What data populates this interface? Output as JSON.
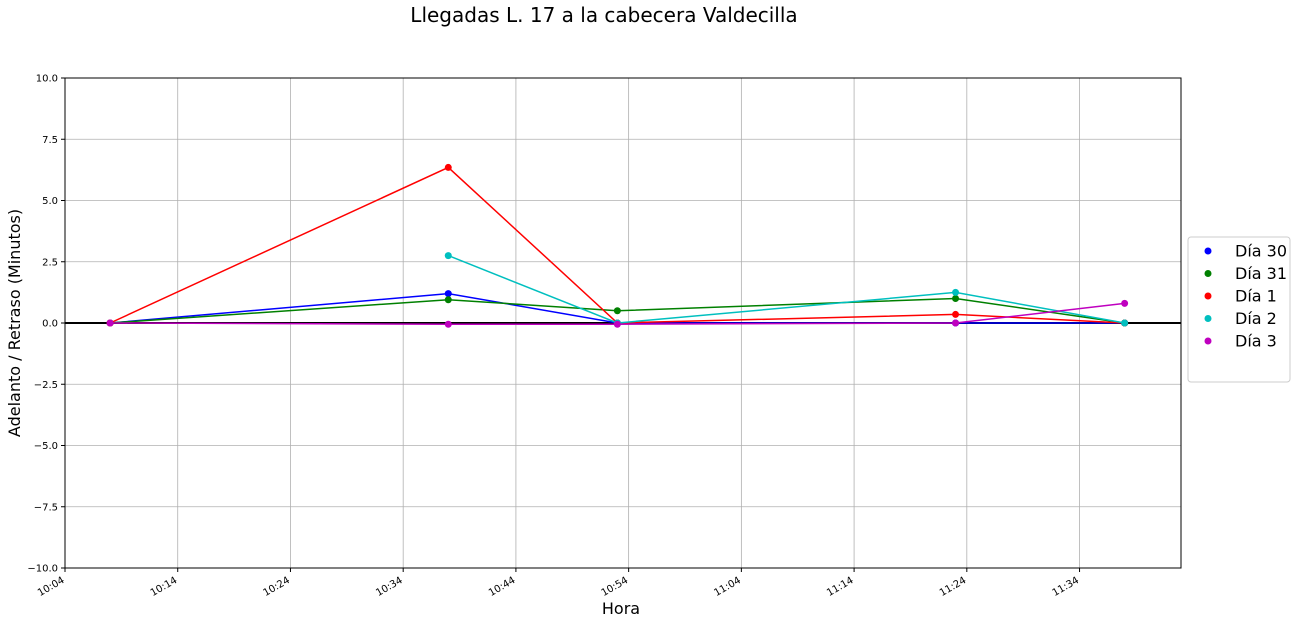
{
  "chart_data": {
    "type": "line",
    "title": "Llegadas L. 17 a la cabecera Valdecilla",
    "xlabel": "Hora",
    "ylabel": "Adelanto / Retraso (Minutos)",
    "ylim": [
      -10,
      10
    ],
    "xlim": [
      "10:04",
      "11:43"
    ],
    "yticks": [
      10.0,
      7.5,
      5.0,
      2.5,
      0.0,
      -2.5,
      -5.0,
      -7.5,
      -10.0
    ],
    "ytick_labels": [
      "10.0",
      "7.5",
      "5.0",
      "2.5",
      "0.0",
      "−2.5",
      "−5.0",
      "−7.5",
      "−10.0"
    ],
    "xticks": [
      "10:04",
      "10:14",
      "10:24",
      "10:34",
      "10:44",
      "10:54",
      "11:04",
      "11:14",
      "11:24",
      "11:34"
    ],
    "grid": true,
    "zero_line": true,
    "legend_position": "right",
    "series": [
      {
        "name": "Día 30",
        "color": "#0000ff",
        "x": [
          "10:08",
          "10:38",
          "10:53",
          "11:23",
          "11:38"
        ],
        "values": [
          0.0,
          1.2,
          0.0,
          0.0,
          0.0
        ]
      },
      {
        "name": "Día 31",
        "color": "#008000",
        "x": [
          "10:08",
          "10:38",
          "10:53",
          "11:23",
          "11:38"
        ],
        "values": [
          0.0,
          0.95,
          0.5,
          1.0,
          0.0
        ]
      },
      {
        "name": "Día 1",
        "color": "#ff0000",
        "x": [
          "10:08",
          "10:38",
          "10:53",
          "11:23",
          "11:38"
        ],
        "values": [
          0.0,
          6.35,
          0.0,
          0.35,
          0.0
        ]
      },
      {
        "name": "Día 2",
        "color": "#00bfbf",
        "x": [
          "10:38",
          "10:53",
          "11:23",
          "11:38"
        ],
        "values": [
          2.75,
          0.0,
          1.25,
          0.0
        ]
      },
      {
        "name": "Día 3",
        "color": "#bf00bf",
        "x": [
          "10:08",
          "10:38",
          "10:53",
          "11:23",
          "11:38"
        ],
        "values": [
          0.0,
          -0.05,
          -0.05,
          0.0,
          0.8
        ]
      }
    ]
  }
}
